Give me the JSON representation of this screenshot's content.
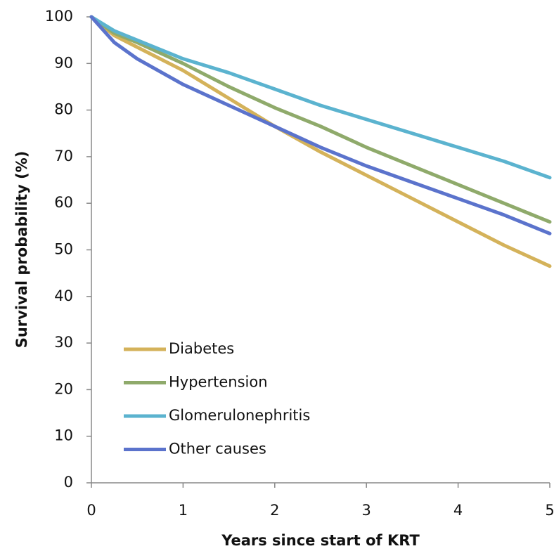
{
  "chart_data": {
    "type": "line",
    "x_label": "Years since start of KRT",
    "y_label": "Survival probability (%)",
    "x": [
      0,
      0.25,
      0.5,
      1,
      1.5,
      2,
      2.5,
      3,
      3.5,
      4,
      4.5,
      5
    ],
    "series": [
      {
        "name": "Diabetes",
        "color": "#d4b25a",
        "values": [
          100,
          96,
          93.5,
          88.5,
          82.5,
          76.5,
          71,
          66,
          61,
          56,
          51,
          46.5
        ]
      },
      {
        "name": "Hypertension",
        "color": "#8faa6b",
        "values": [
          100,
          96.5,
          94.5,
          90,
          85,
          80.5,
          76.5,
          72,
          68,
          64,
          60,
          56
        ]
      },
      {
        "name": "Glomerulonephritis",
        "color": "#5bb3cf",
        "values": [
          100,
          97,
          95,
          91,
          88,
          84.5,
          81,
          78,
          75,
          72,
          69,
          65.5
        ]
      },
      {
        "name": "Other causes",
        "color": "#5b73cc",
        "values": [
          100,
          94.5,
          91,
          85.5,
          81,
          76.5,
          72,
          68,
          64.5,
          61,
          57.5,
          53.5
        ]
      }
    ],
    "xlim": [
      0,
      5
    ],
    "xticks": [
      0,
      1,
      2,
      3,
      4,
      5
    ],
    "ylim": [
      0,
      100
    ],
    "yticks": [
      0,
      10,
      20,
      30,
      40,
      50,
      60,
      70,
      80,
      90,
      100
    ],
    "grid": false,
    "legend": "lower left"
  }
}
